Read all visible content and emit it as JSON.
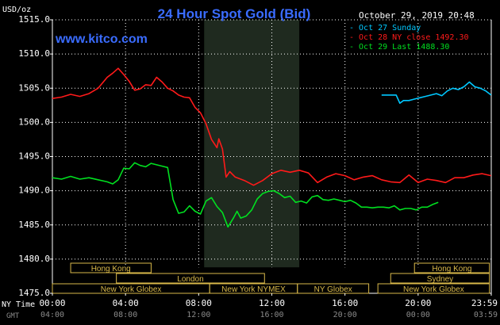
{
  "chart_data": {
    "type": "line",
    "title": "24 Hour Spot Gold (Bid)",
    "site": "www.kitco.com",
    "timestamp": "October 29, 2019 20:48",
    "ylabel": "USD/oz",
    "ylim": [
      1475.0,
      1515.0
    ],
    "yticks": [
      "1515.0",
      "1510.0",
      "1505.0",
      "1500.0",
      "1495.0",
      "1490.0",
      "1485.0",
      "1480.0",
      "1475.0"
    ],
    "ytick_values": [
      1515,
      1510,
      1505,
      1500,
      1495,
      1490,
      1485,
      1480,
      1475
    ],
    "xlim": [
      0,
      24
    ],
    "ny_time_label": "NY Time",
    "gmt_label": "GMT",
    "ny_ticks": [
      "00:00",
      "04:00",
      "08:00",
      "12:00",
      "16:00",
      "20:00",
      "23:59"
    ],
    "gmt_ticks": [
      "04:00",
      "08:00",
      "12:00",
      "16:00",
      "20:00",
      "00:00",
      "03:59"
    ],
    "tick_hours": [
      0,
      4,
      8,
      12,
      16,
      20,
      24
    ],
    "shaded_session": [
      8.3,
      13.5
    ],
    "sessions": [
      {
        "label": "Hong Kong",
        "start": 1.0,
        "end": 5.4
      },
      {
        "label": "London",
        "start": 3.5,
        "end": 11.6
      },
      {
        "label": "New York Globex",
        "start": 0.0,
        "end": 8.6
      },
      {
        "label": "New York NYMEX",
        "start": 8.6,
        "end": 13.4
      },
      {
        "label": "NY Globex",
        "start": 13.4,
        "end": 17.3
      },
      {
        "label": "Hong Kong",
        "start": 19.8,
        "end": 23.9
      },
      {
        "label": "Sydney",
        "start": 18.5,
        "end": 23.9
      },
      {
        "label": "New York Globex",
        "start": 17.8,
        "end": 23.9
      }
    ],
    "series": [
      {
        "name": "Oct 27 Sunday",
        "color": "#00c8ff",
        "x": [
          18.0,
          18.4,
          18.8,
          19.0,
          19.2,
          19.5,
          19.8,
          20.1,
          20.4,
          20.7,
          21.0,
          21.3,
          21.6,
          21.9,
          22.2,
          22.5,
          22.8,
          23.1,
          23.4,
          23.7,
          23.99
        ],
        "y": [
          1504.0,
          1504.0,
          1504.0,
          1502.8,
          1503.2,
          1503.2,
          1503.4,
          1503.6,
          1503.8,
          1504.0,
          1504.2,
          1503.9,
          1504.6,
          1505.0,
          1504.8,
          1505.2,
          1505.9,
          1505.2,
          1505.0,
          1504.6,
          1504.0
        ]
      },
      {
        "name": "Oct 28 NY close 1492.30",
        "color": "#ff1a1a",
        "x": [
          0.0,
          0.5,
          1.0,
          1.5,
          2.0,
          2.5,
          3.0,
          3.3,
          3.6,
          3.9,
          4.2,
          4.5,
          4.8,
          5.1,
          5.4,
          5.7,
          6.0,
          6.3,
          6.6,
          6.9,
          7.2,
          7.5,
          7.8,
          8.1,
          8.4,
          8.7,
          9.0,
          9.1,
          9.3,
          9.5,
          9.7,
          10.0,
          10.5,
          11.0,
          11.5,
          12.0,
          12.5,
          13.0,
          13.5,
          14.0,
          14.5,
          15.0,
          15.5,
          16.0,
          16.5,
          17.0,
          17.5,
          18.0,
          18.5,
          19.0,
          19.5,
          20.0,
          20.5,
          21.0,
          21.5,
          22.0,
          22.5,
          23.0,
          23.5,
          23.99
        ],
        "y": [
          1503.5,
          1503.7,
          1504.1,
          1503.8,
          1504.2,
          1505.0,
          1506.6,
          1507.2,
          1507.9,
          1507.0,
          1506.0,
          1504.7,
          1504.9,
          1505.5,
          1505.4,
          1506.6,
          1505.9,
          1505.0,
          1504.6,
          1504.0,
          1503.7,
          1503.6,
          1502.2,
          1501.4,
          1499.8,
          1497.5,
          1496.3,
          1497.6,
          1496.1,
          1492.0,
          1492.8,
          1492.0,
          1491.5,
          1490.8,
          1491.5,
          1492.5,
          1493.0,
          1492.7,
          1493.0,
          1492.6,
          1491.2,
          1492.0,
          1492.5,
          1492.2,
          1491.6,
          1492.0,
          1492.2,
          1491.6,
          1491.3,
          1491.2,
          1492.3,
          1491.2,
          1491.7,
          1491.5,
          1491.2,
          1491.9,
          1491.9,
          1492.3,
          1492.5,
          1492.2
        ]
      },
      {
        "name": "Oct 29 Last 1488.30",
        "color": "#00e020",
        "x": [
          0.0,
          0.5,
          1.0,
          1.5,
          2.0,
          2.5,
          3.0,
          3.3,
          3.6,
          3.9,
          4.2,
          4.5,
          4.8,
          5.1,
          5.4,
          5.7,
          6.0,
          6.3,
          6.6,
          6.9,
          7.2,
          7.5,
          7.8,
          8.1,
          8.4,
          8.7,
          9.0,
          9.3,
          9.6,
          9.9,
          10.1,
          10.3,
          10.6,
          10.9,
          11.2,
          11.5,
          11.8,
          12.1,
          12.4,
          12.7,
          13.0,
          13.3,
          13.6,
          13.9,
          14.2,
          14.5,
          14.8,
          15.1,
          15.4,
          15.7,
          16.0,
          16.3,
          16.6,
          16.9,
          17.2,
          17.5,
          17.8,
          18.1,
          18.4,
          18.7,
          19.0,
          19.3,
          19.6,
          19.9,
          20.2,
          20.5,
          20.8,
          21.1
        ],
        "y": [
          1491.9,
          1491.7,
          1492.1,
          1491.7,
          1491.9,
          1491.6,
          1491.3,
          1491.0,
          1491.6,
          1493.3,
          1493.2,
          1494.1,
          1493.7,
          1493.5,
          1494.0,
          1493.8,
          1493.6,
          1493.4,
          1488.7,
          1486.7,
          1486.9,
          1487.8,
          1487.0,
          1486.6,
          1488.5,
          1489.0,
          1487.7,
          1486.8,
          1484.7,
          1486.0,
          1487.0,
          1486.0,
          1486.3,
          1487.2,
          1488.8,
          1489.6,
          1489.9,
          1490.0,
          1489.6,
          1489.0,
          1489.2,
          1488.3,
          1488.5,
          1488.2,
          1489.1,
          1489.3,
          1488.7,
          1488.6,
          1488.8,
          1488.6,
          1488.4,
          1488.6,
          1488.2,
          1487.6,
          1487.6,
          1487.5,
          1487.6,
          1487.6,
          1487.5,
          1487.8,
          1487.2,
          1487.4,
          1487.4,
          1487.2,
          1487.6,
          1487.6,
          1488.0,
          1488.3
        ]
      }
    ]
  }
}
